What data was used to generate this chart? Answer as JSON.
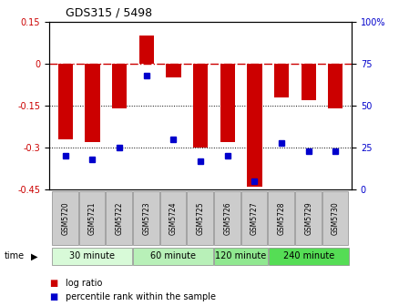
{
  "title": "GDS315 / 5498",
  "samples": [
    "GSM5720",
    "GSM5721",
    "GSM5722",
    "GSM5723",
    "GSM5724",
    "GSM5725",
    "GSM5726",
    "GSM5727",
    "GSM5728",
    "GSM5729",
    "GSM5730"
  ],
  "log_ratio": [
    -0.27,
    -0.28,
    -0.16,
    0.1,
    -0.05,
    -0.3,
    -0.28,
    -0.44,
    -0.12,
    -0.13,
    -0.16
  ],
  "percentile": [
    20,
    18,
    25,
    68,
    30,
    17,
    20,
    5,
    28,
    23,
    23
  ],
  "ylim_left": [
    -0.45,
    0.15
  ],
  "ylim_right": [
    0,
    100
  ],
  "yticks_left": [
    0.15,
    0,
    -0.15,
    -0.3,
    -0.45
  ],
  "yticks_left_labels": [
    "0.15",
    "0",
    "-0.15",
    "-0.3",
    "-0.45"
  ],
  "yticks_right": [
    100,
    75,
    50,
    25,
    0
  ],
  "yticks_right_labels": [
    "100%",
    "75",
    "50",
    "25",
    "0"
  ],
  "groups": [
    {
      "label": "30 minute",
      "start": 0,
      "end": 2,
      "color": "#d8fad8"
    },
    {
      "label": "60 minute",
      "start": 3,
      "end": 5,
      "color": "#b8f0b8"
    },
    {
      "label": "120 minute",
      "start": 6,
      "end": 7,
      "color": "#90e890"
    },
    {
      "label": "240 minute",
      "start": 8,
      "end": 10,
      "color": "#55dd55"
    }
  ],
  "bar_color": "#cc0000",
  "dot_color": "#0000cc",
  "hline_zero_color": "#cc0000",
  "hline_dotted_color": "#000000",
  "tick_label_color_left": "#cc0000",
  "tick_label_color_right": "#0000cc",
  "bar_width": 0.55,
  "background_color": "#ffffff"
}
